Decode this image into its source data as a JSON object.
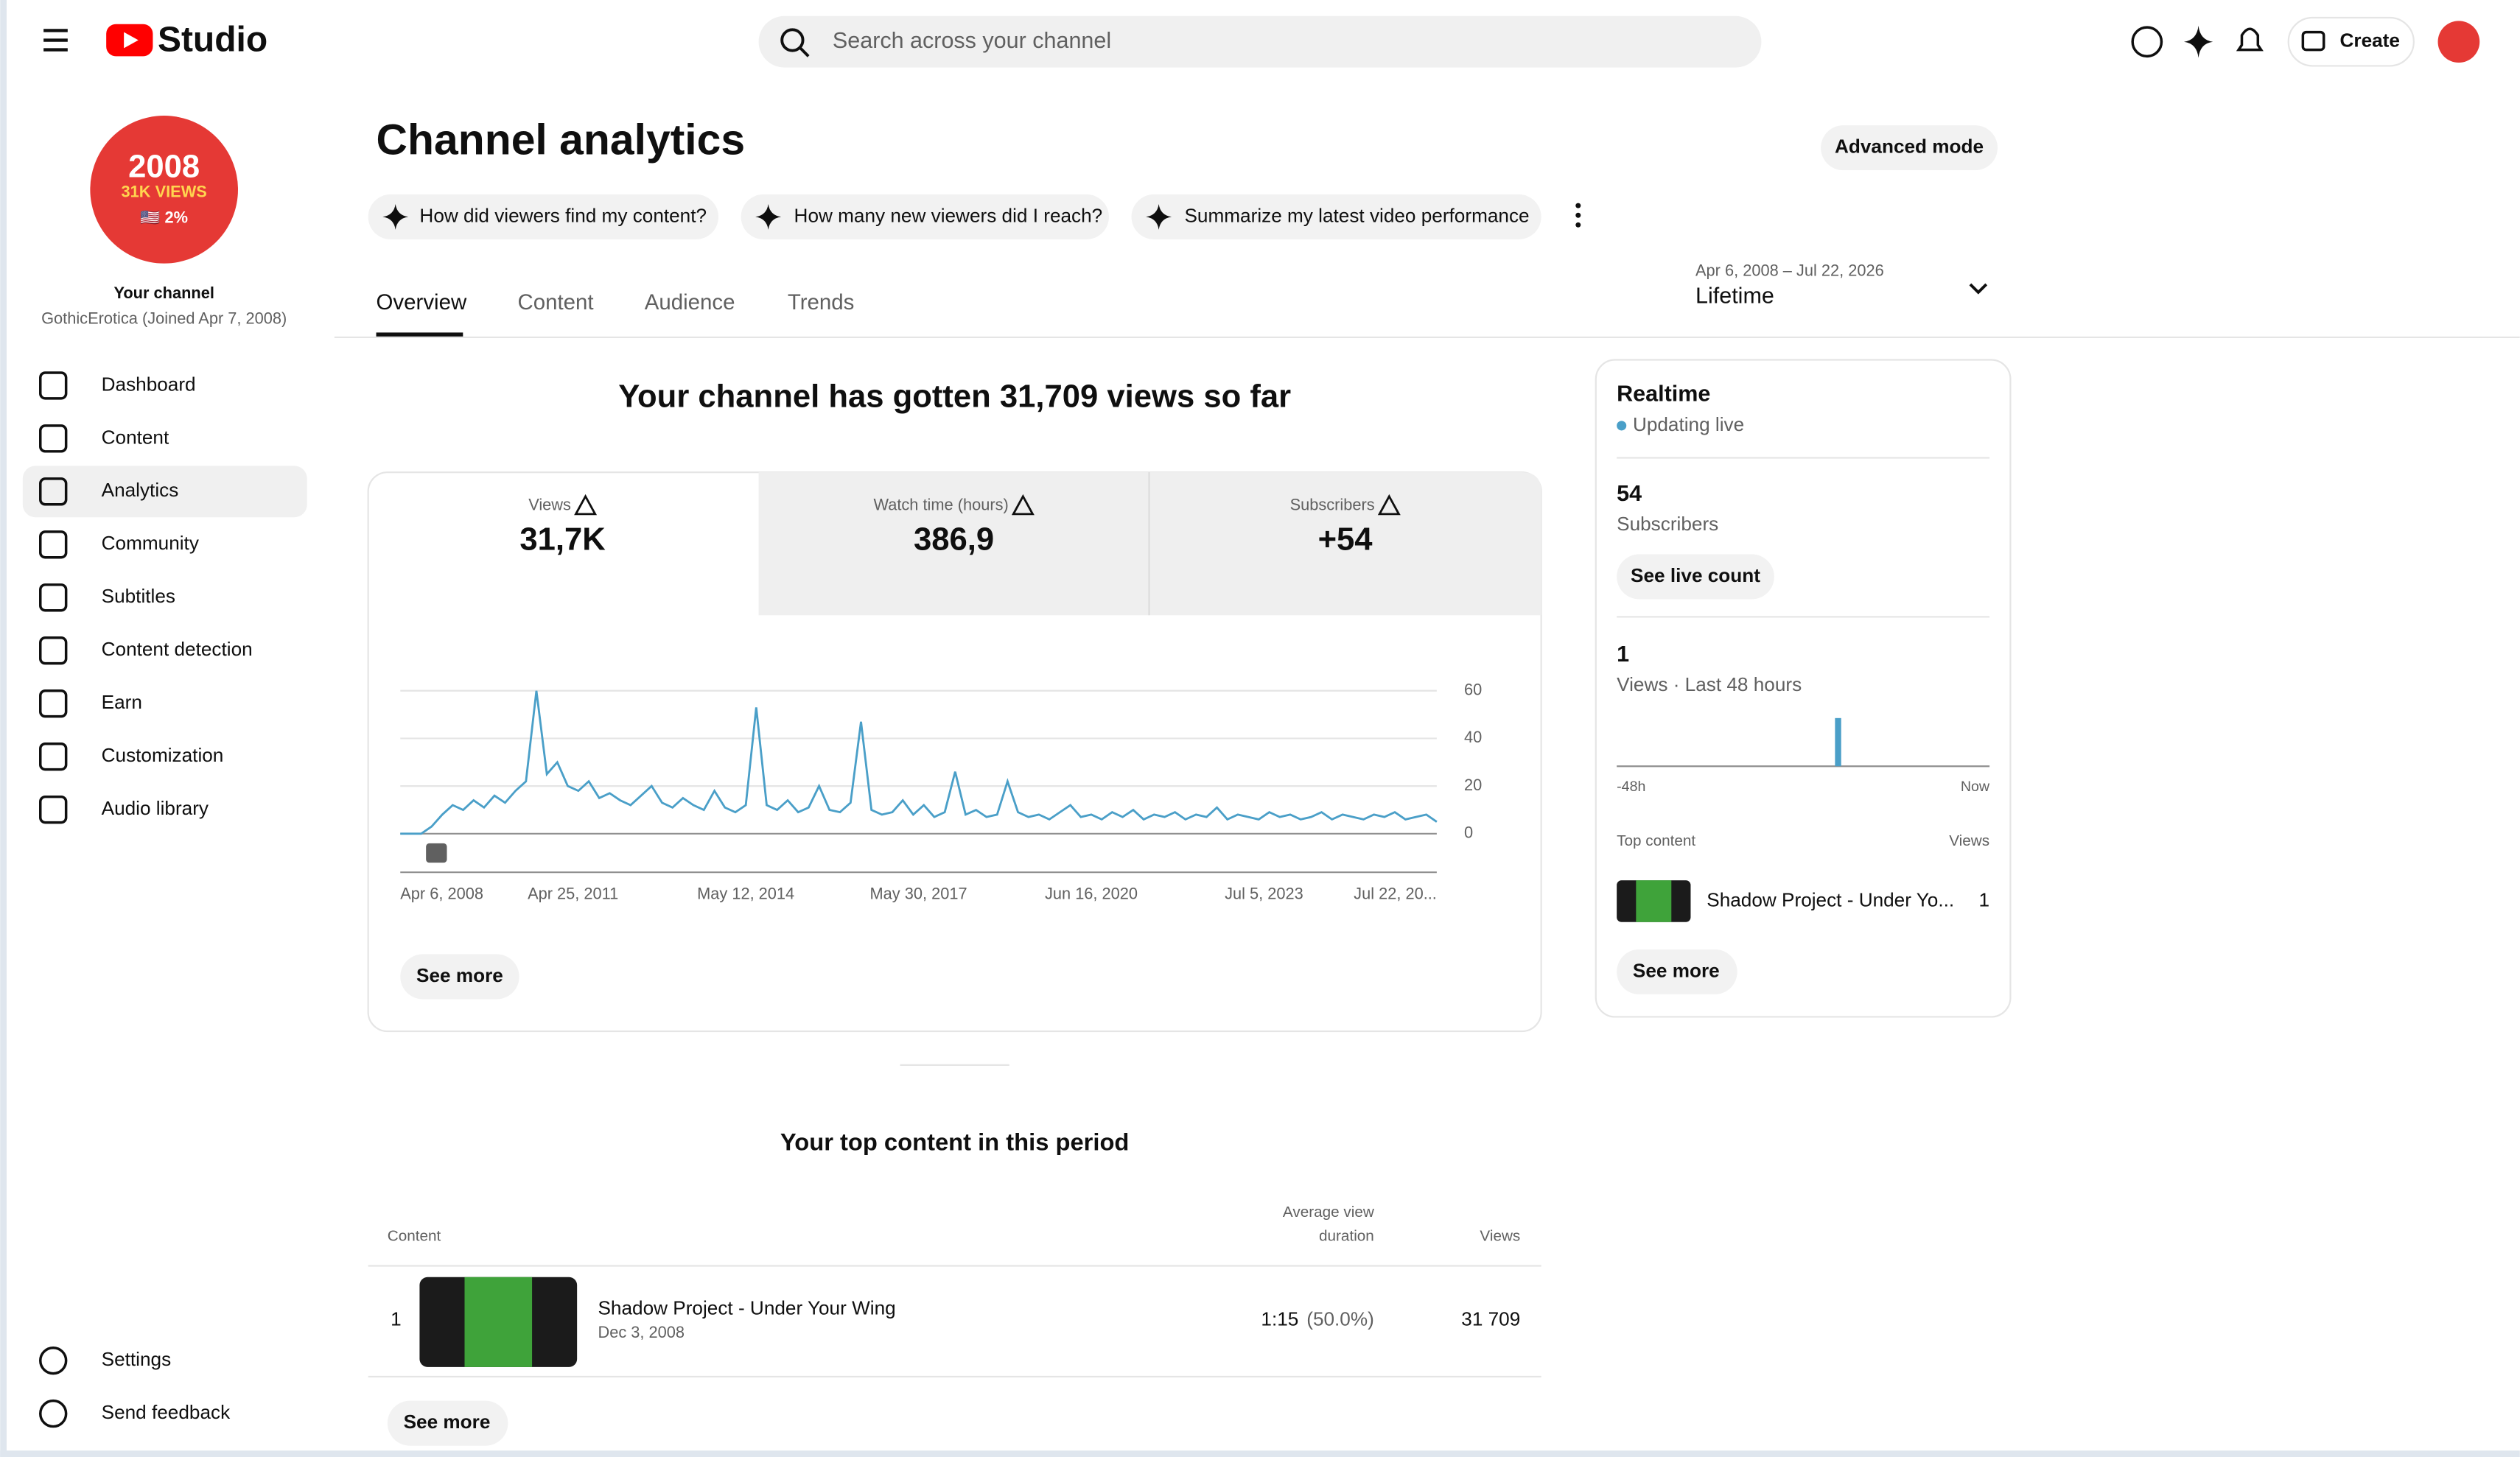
{
  "header": {
    "logo": "Studio",
    "search_placeholder": "Search across your channel",
    "create": "Create"
  },
  "sidebar": {
    "avatar": {
      "line1": "2008",
      "line2": "31K VIEWS",
      "line3": "🇺🇸 2%"
    },
    "channel_label": "Your channel",
    "channel_name": "GothicErotica (Joined Apr 7, 2008)",
    "nav": [
      "Dashboard",
      "Content",
      "Analytics",
      "Community",
      "Subtitles",
      "Content detection",
      "Earn",
      "Customization",
      "Audio library"
    ],
    "footer_nav": [
      "Settings",
      "Send feedback"
    ]
  },
  "page": {
    "title": "Channel analytics",
    "advanced": "Advanced mode",
    "prompts": [
      "How did viewers find my content?",
      "How many new viewers did I reach?",
      "Summarize my latest video performance"
    ],
    "tabs": [
      "Overview",
      "Content",
      "Audience",
      "Trends"
    ],
    "date_range": "Apr 6, 2008 – Jul 22, 2026",
    "period": "Lifetime"
  },
  "summary": "Your channel has gotten 31,709 views so far",
  "metrics": [
    {
      "label": "Views",
      "value": "31,7K"
    },
    {
      "label": "Watch time (hours)",
      "value": "386,9"
    },
    {
      "label": "Subscribers",
      "value": "+54"
    }
  ],
  "chart_data": [
    {
      "type": "line",
      "color": "#4a9fc8",
      "ylim": [
        0,
        60
      ],
      "yticks": [
        0,
        20,
        40,
        60
      ],
      "grid": true,
      "xtick_labels": [
        "Apr 6, 2008",
        "Apr 25, 2011",
        "May 12, 2014",
        "May 30, 2017",
        "Jun 16, 2020",
        "Jul 5, 2023",
        "Jul 22, 20..."
      ],
      "values": [
        0,
        0,
        0,
        3,
        8,
        12,
        10,
        14,
        11,
        16,
        13,
        18,
        22,
        60,
        25,
        30,
        20,
        18,
        22,
        15,
        17,
        14,
        12,
        16,
        20,
        13,
        11,
        15,
        12,
        10,
        18,
        11,
        9,
        12,
        53,
        12,
        10,
        14,
        9,
        11,
        20,
        10,
        9,
        13,
        47,
        10,
        8,
        9,
        14,
        8,
        12,
        7,
        9,
        26,
        8,
        10,
        7,
        8,
        22,
        9,
        7,
        8,
        6,
        9,
        12,
        7,
        8,
        6,
        9,
        7,
        10,
        6,
        8,
        7,
        9,
        6,
        8,
        7,
        11,
        6,
        8,
        7,
        6,
        9,
        7,
        8,
        6,
        7,
        9,
        6,
        8,
        7,
        6,
        8,
        7,
        9,
        6,
        7,
        8,
        5
      ]
    },
    {
      "type": "bar",
      "color": "#4a9fc8",
      "ylim": [
        0,
        1
      ],
      "xtick_labels": [
        "-48h",
        "Now"
      ],
      "values": [
        0,
        0,
        0,
        0,
        0,
        0,
        0,
        0,
        0,
        0,
        0,
        0,
        0,
        0,
        0,
        0,
        0,
        0,
        0,
        0,
        0,
        0,
        0,
        0,
        0,
        0,
        0,
        0,
        1,
        0,
        0,
        0,
        0,
        0,
        0,
        0,
        0,
        0,
        0,
        0,
        0,
        0,
        0,
        0,
        0,
        0,
        0,
        0
      ]
    }
  ],
  "main_card": {
    "see_more": "See more"
  },
  "realtime": {
    "title": "Realtime",
    "status": "Updating live",
    "subscribers": "54",
    "subscribers_label": "Subscribers",
    "live_count": "See live count",
    "views": "1",
    "views_label": "Views · Last 48 hours",
    "top_content": "Top content",
    "views_header": "Views",
    "item_title": "Shadow Project - Under Yo...",
    "item_views": "1",
    "see_more": "See more"
  },
  "top_content": {
    "title": "Your top content in this period",
    "headers": {
      "content": "Content",
      "avd_1": "Average view",
      "avd_2": "duration",
      "views": "Views"
    },
    "rows": [
      {
        "rank": "1",
        "title": "Shadow Project - Under Your Wing",
        "date": "Dec 3, 2008",
        "duration": "1:15",
        "percent": "(50.0%)",
        "views": "31 709"
      }
    ],
    "see_more": "See more"
  }
}
